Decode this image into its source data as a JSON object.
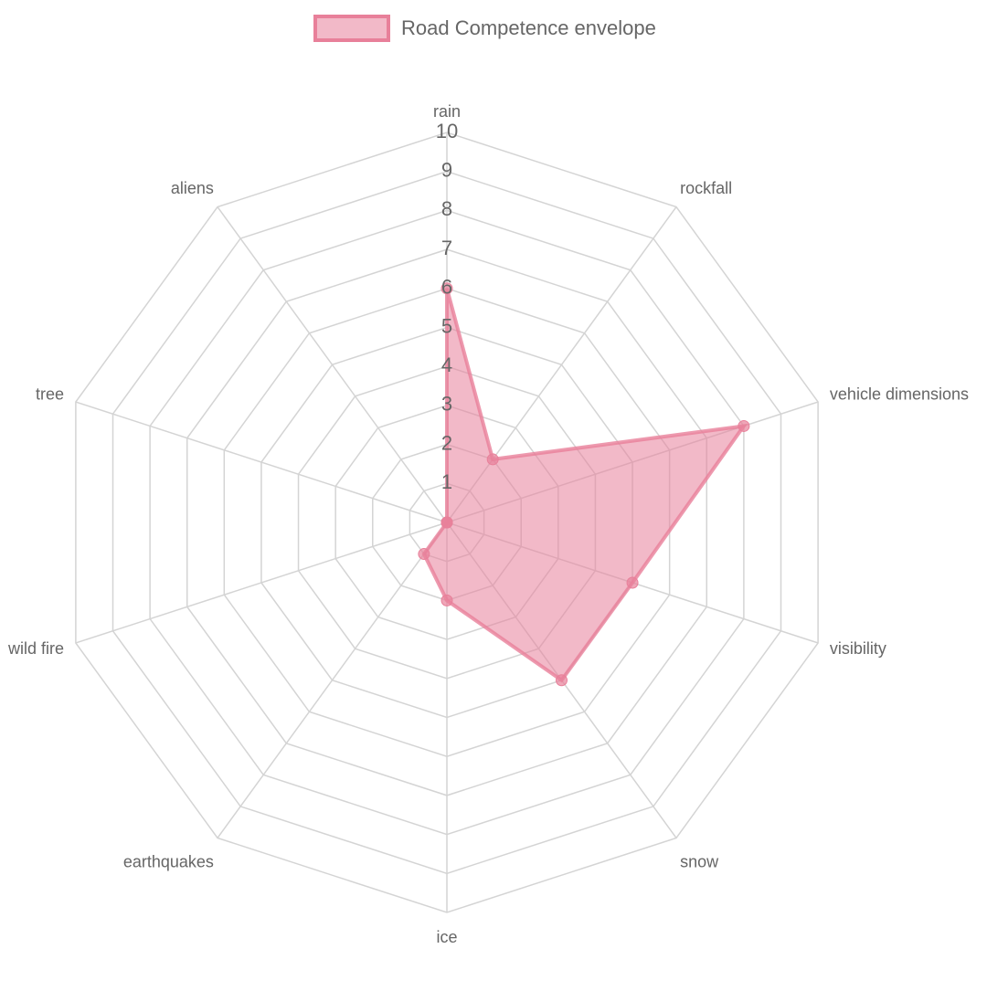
{
  "chart_data": {
    "type": "radar",
    "categories": [
      "rain",
      "rockfall",
      "vehicle dimensions",
      "visibility",
      "snow",
      "ice",
      "earthquakes",
      "wild fire",
      "tree",
      "aliens"
    ],
    "series": [
      {
        "name": "Road Competence envelope",
        "color": "#e8809a",
        "values": [
          6,
          2,
          8,
          5,
          5,
          2,
          1,
          0,
          0,
          0
        ]
      }
    ],
    "rlim": [
      0,
      10
    ],
    "rticks": [
      1,
      2,
      3,
      4,
      5,
      6,
      7,
      8,
      9,
      10
    ],
    "grid": true,
    "legend": "top"
  }
}
